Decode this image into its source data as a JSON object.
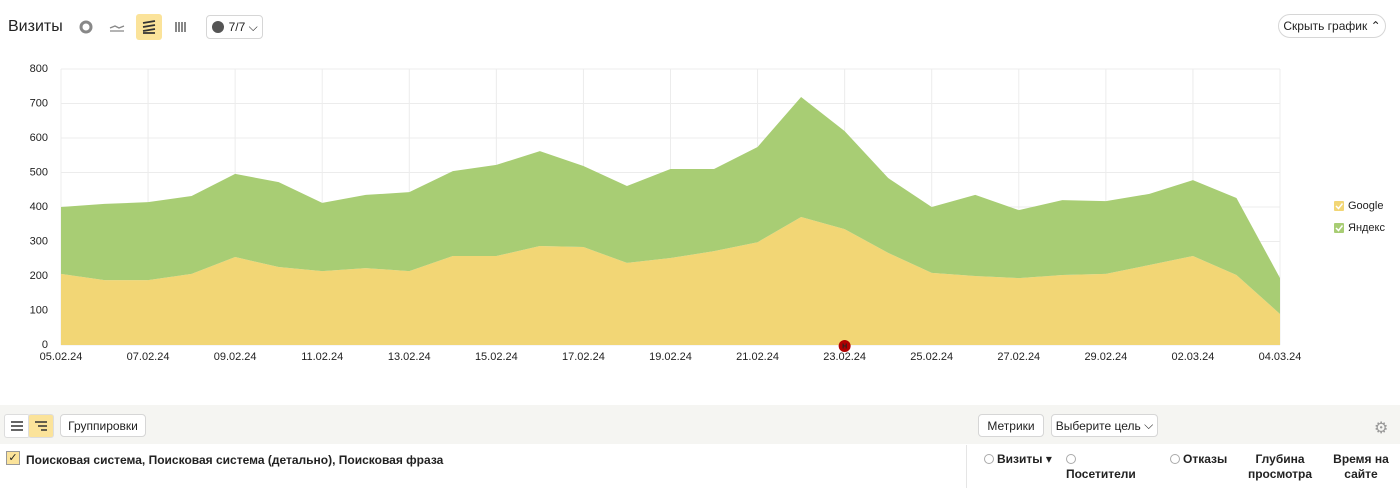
{
  "header": {
    "title": "Визиты",
    "segments_button": "7/7",
    "hide_chart_button": "Скрыть график"
  },
  "chart_data": {
    "type": "area",
    "stacked": true,
    "categories": [
      "05.02.24",
      null,
      "07.02.24",
      null,
      "09.02.24",
      null,
      "11.02.24",
      null,
      "13.02.24",
      null,
      "15.02.24",
      null,
      "17.02.24",
      null,
      "19.02.24",
      null,
      "21.02.24",
      null,
      "23.02.24",
      null,
      "25.02.24",
      null,
      "27.02.24",
      null,
      "29.02.24",
      null,
      "02.03.24",
      null,
      "04.03.24"
    ],
    "series": [
      {
        "name": "Google",
        "color": "#f2d675",
        "values": [
          206,
          188,
          188,
          206,
          255,
          226,
          214,
          223,
          214,
          258,
          258,
          287,
          284,
          238,
          252,
          272,
          298,
          371,
          336,
          267,
          209,
          200,
          194,
          203,
          206,
          232,
          258,
          203,
          90
        ]
      },
      {
        "name": "Яндекс",
        "color": "#a8cd74",
        "values": [
          194,
          221,
          226,
          226,
          241,
          246,
          198,
          212,
          229,
          246,
          264,
          275,
          235,
          223,
          258,
          238,
          276,
          348,
          284,
          217,
          191,
          235,
          197,
          217,
          211,
          206,
          220,
          223,
          104
        ]
      }
    ],
    "ylim": [
      0,
      800
    ],
    "yticks": [
      0,
      100,
      200,
      300,
      400,
      500,
      600,
      700,
      800
    ],
    "grid": true,
    "legend": "right",
    "highlighted": [
      6,
      12,
      20,
      26
    ],
    "highlight_color": "#b00000",
    "annotations": [
      {
        "category": 18,
        "label": "Н"
      }
    ]
  },
  "toolbar": {
    "groupings_button": "Группировки",
    "metrics_button": "Метрики",
    "goal_select": "Выберите цель"
  },
  "table": {
    "dimensions_header": "Поисковая система, Поисковая система (детально), Поисковая фраза",
    "columns": [
      "Визиты",
      "Посетители",
      "Отказы",
      "Глубина просмотра",
      "Время на сайте"
    ]
  }
}
